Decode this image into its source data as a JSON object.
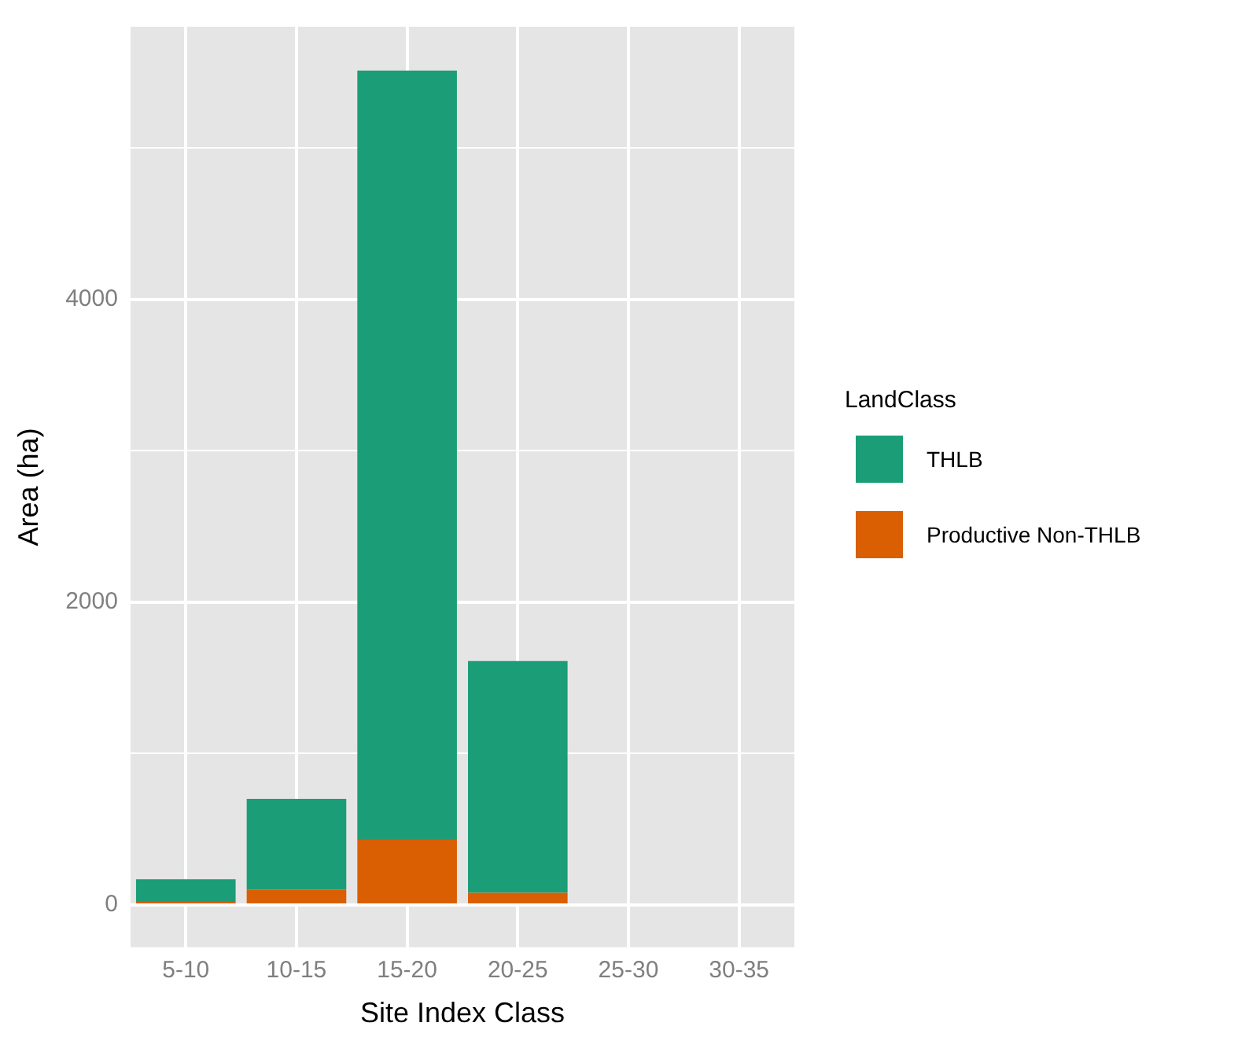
{
  "chart_data": {
    "type": "bar",
    "stacked": true,
    "xlabel": "Site Index Class",
    "ylabel": "Area (ha)",
    "legend_title": "LandClass",
    "legend": "right",
    "grid": true,
    "categories": [
      "5-10",
      "10-15",
      "15-20",
      "20-25",
      "25-30",
      "30-35"
    ],
    "series": [
      {
        "name": "Productive Non-THLB",
        "color": "#d95f02",
        "values": [
          20,
          100,
          430,
          80,
          0,
          0
        ]
      },
      {
        "name": "THLB",
        "color": "#1b9e77",
        "values": [
          150,
          600,
          5080,
          1530,
          0,
          0
        ]
      }
    ],
    "ylim": [
      -280,
      5800
    ],
    "yticks": [
      0,
      {
        "value": 1000,
        "label": null
      },
      2000,
      {
        "value": 3000,
        "label": null
      },
      4000,
      {
        "value": 5000,
        "label": null
      }
    ]
  }
}
